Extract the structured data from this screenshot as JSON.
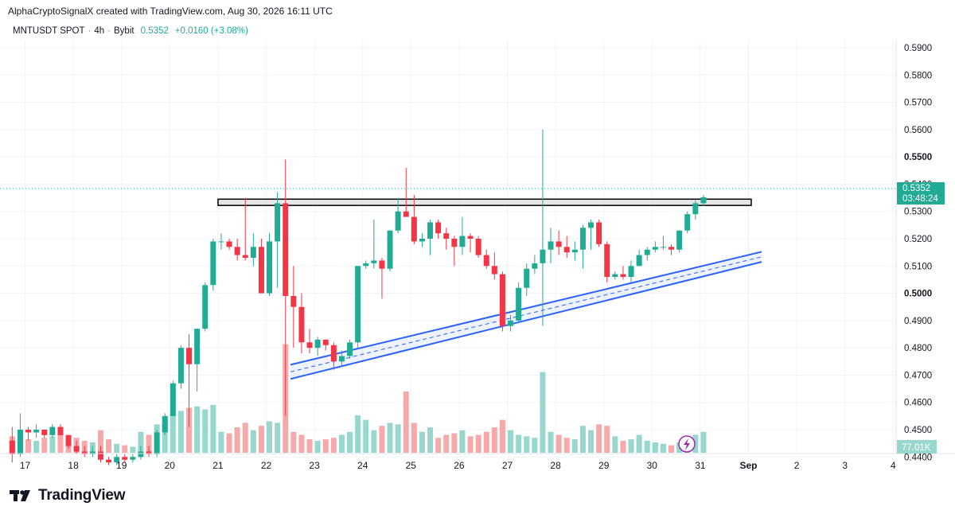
{
  "header": {
    "credit": "AlphaCryptoSignalX created with TradingView.com, Aug 30, 2026 16:11 UTC",
    "symbol": "MNTUSDT SPOT",
    "interval": "4h",
    "exchange": "Bybit",
    "last": "0.5352",
    "change": "+0.0160 (+3.08%)"
  },
  "price_label": {
    "value": "0.5352",
    "countdown": "03:48:24"
  },
  "volume_label": "77.01K",
  "brand": {
    "name": "TradingView"
  },
  "colors": {
    "up": "#22ab94",
    "down": "#f23645",
    "up_vol": "#98d7ce",
    "down_vol": "#f7a9a9",
    "channel": "#2962ff",
    "grid": "#f0f3fa"
  },
  "chart_data": {
    "type": "candlestick",
    "y_ticks": [
      "0.5900",
      "0.5800",
      "0.5700",
      "0.5600",
      "0.5500",
      "0.5400",
      "0.5300",
      "0.5200",
      "0.5100",
      "0.5000",
      "0.4900",
      "0.4800",
      "0.4700",
      "0.4600",
      "0.4500",
      "0.4400"
    ],
    "bold_ticks": [
      "0.5500",
      "0.5000"
    ],
    "x_ticks": [
      "17",
      "18",
      "19",
      "20",
      "21",
      "22",
      "23",
      "24",
      "25",
      "26",
      "27",
      "28",
      "29",
      "30",
      "31",
      "Sep",
      "2",
      "3",
      "4"
    ],
    "ylim": [
      0.4352,
      0.5985
    ],
    "last_price": 0.5352,
    "candles": [
      [
        0.446,
        0.451,
        0.438,
        0.441,
        22
      ],
      [
        0.441,
        0.456,
        0.44,
        0.45,
        28
      ],
      [
        0.45,
        0.451,
        0.446,
        0.449,
        18
      ],
      [
        0.449,
        0.452,
        0.447,
        0.45,
        16
      ],
      [
        0.45,
        0.45,
        0.447,
        0.448,
        20
      ],
      [
        0.448,
        0.452,
        0.447,
        0.451,
        22
      ],
      [
        0.451,
        0.452,
        0.448,
        0.448,
        30
      ],
      [
        0.448,
        0.448,
        0.443,
        0.444,
        24
      ],
      [
        0.444,
        0.446,
        0.441,
        0.442,
        20
      ],
      [
        0.442,
        0.444,
        0.44,
        0.441,
        16
      ],
      [
        0.441,
        0.444,
        0.44,
        0.442,
        14
      ],
      [
        0.442,
        0.444,
        0.438,
        0.439,
        30
      ],
      [
        0.439,
        0.44,
        0.437,
        0.438,
        18
      ],
      [
        0.438,
        0.441,
        0.437,
        0.44,
        12
      ],
      [
        0.44,
        0.441,
        0.438,
        0.439,
        10
      ],
      [
        0.439,
        0.441,
        0.438,
        0.44,
        8
      ],
      [
        0.44,
        0.444,
        0.439,
        0.442,
        28
      ],
      [
        0.442,
        0.444,
        0.44,
        0.441,
        24
      ],
      [
        0.441,
        0.45,
        0.44,
        0.449,
        38
      ],
      [
        0.449,
        0.456,
        0.448,
        0.455,
        40
      ],
      [
        0.455,
        0.468,
        0.455,
        0.467,
        50
      ],
      [
        0.467,
        0.481,
        0.465,
        0.48,
        56
      ],
      [
        0.48,
        0.485,
        0.451,
        0.474,
        60
      ],
      [
        0.474,
        0.487,
        0.464,
        0.487,
        62
      ],
      [
        0.487,
        0.504,
        0.486,
        0.503,
        58
      ],
      [
        0.503,
        0.52,
        0.501,
        0.519,
        64
      ],
      [
        0.519,
        0.522,
        0.516,
        0.519,
        28
      ],
      [
        0.519,
        0.52,
        0.516,
        0.517,
        26
      ],
      [
        0.517,
        0.52,
        0.512,
        0.514,
        34
      ],
      [
        0.514,
        0.535,
        0.512,
        0.513,
        40
      ],
      [
        0.513,
        0.522,
        0.51,
        0.517,
        30
      ],
      [
        0.517,
        0.52,
        0.5,
        0.5,
        36
      ],
      [
        0.5,
        0.522,
        0.499,
        0.519,
        42
      ],
      [
        0.519,
        0.537,
        0.502,
        0.533,
        40
      ],
      [
        0.533,
        0.549,
        0.455,
        0.499,
        145
      ],
      [
        0.499,
        0.51,
        0.48,
        0.495,
        28
      ],
      [
        0.495,
        0.5,
        0.478,
        0.482,
        24
      ],
      [
        0.482,
        0.487,
        0.478,
        0.48,
        18
      ],
      [
        0.48,
        0.484,
        0.477,
        0.483,
        16
      ],
      [
        0.483,
        0.483,
        0.479,
        0.481,
        18
      ],
      [
        0.481,
        0.482,
        0.472,
        0.475,
        20
      ],
      [
        0.475,
        0.479,
        0.473,
        0.477,
        24
      ],
      [
        0.477,
        0.483,
        0.476,
        0.482,
        28
      ],
      [
        0.482,
        0.51,
        0.48,
        0.51,
        50
      ],
      [
        0.51,
        0.512,
        0.509,
        0.511,
        44
      ],
      [
        0.511,
        0.527,
        0.509,
        0.512,
        30
      ],
      [
        0.512,
        0.513,
        0.498,
        0.509,
        36
      ],
      [
        0.509,
        0.523,
        0.508,
        0.523,
        40
      ],
      [
        0.523,
        0.535,
        0.522,
        0.53,
        38
      ],
      [
        0.53,
        0.546,
        0.529,
        0.528,
        82
      ],
      [
        0.528,
        0.536,
        0.518,
        0.519,
        40
      ],
      [
        0.519,
        0.522,
        0.517,
        0.52,
        28
      ],
      [
        0.52,
        0.527,
        0.514,
        0.526,
        34
      ],
      [
        0.526,
        0.527,
        0.52,
        0.522,
        20
      ],
      [
        0.522,
        0.524,
        0.516,
        0.52,
        24
      ],
      [
        0.52,
        0.521,
        0.51,
        0.517,
        26
      ],
      [
        0.517,
        0.528,
        0.514,
        0.521,
        30
      ],
      [
        0.521,
        0.522,
        0.515,
        0.52,
        22
      ],
      [
        0.52,
        0.521,
        0.513,
        0.514,
        24
      ],
      [
        0.514,
        0.516,
        0.509,
        0.51,
        28
      ],
      [
        0.51,
        0.515,
        0.505,
        0.507,
        34
      ],
      [
        0.507,
        0.508,
        0.486,
        0.488,
        44
      ],
      [
        0.488,
        0.492,
        0.486,
        0.49,
        30
      ],
      [
        0.49,
        0.504,
        0.489,
        0.502,
        24
      ],
      [
        0.502,
        0.511,
        0.499,
        0.509,
        22
      ],
      [
        0.509,
        0.514,
        0.507,
        0.511,
        20
      ],
      [
        0.511,
        0.56,
        0.488,
        0.516,
        108
      ],
      [
        0.516,
        0.524,
        0.511,
        0.519,
        28
      ],
      [
        0.519,
        0.523,
        0.514,
        0.517,
        24
      ],
      [
        0.517,
        0.521,
        0.513,
        0.515,
        20
      ],
      [
        0.515,
        0.519,
        0.512,
        0.516,
        18
      ],
      [
        0.516,
        0.525,
        0.509,
        0.524,
        36
      ],
      [
        0.524,
        0.527,
        0.516,
        0.526,
        30
      ],
      [
        0.526,
        0.527,
        0.517,
        0.518,
        38
      ],
      [
        0.518,
        0.519,
        0.504,
        0.506,
        36
      ],
      [
        0.506,
        0.508,
        0.505,
        0.507,
        22
      ],
      [
        0.507,
        0.51,
        0.505,
        0.506,
        16
      ],
      [
        0.506,
        0.512,
        0.504,
        0.51,
        18
      ],
      [
        0.51,
        0.516,
        0.51,
        0.514,
        24
      ],
      [
        0.514,
        0.517,
        0.512,
        0.516,
        16
      ],
      [
        0.516,
        0.519,
        0.515,
        0.517,
        14
      ],
      [
        0.517,
        0.521,
        0.516,
        0.517,
        12
      ],
      [
        0.517,
        0.518,
        0.514,
        0.516,
        10
      ],
      [
        0.516,
        0.523,
        0.515,
        0.523,
        14
      ],
      [
        0.523,
        0.53,
        0.522,
        0.529,
        18
      ],
      [
        0.529,
        0.534,
        0.527,
        0.533,
        24
      ],
      [
        0.533,
        0.536,
        0.532,
        0.5352,
        28
      ]
    ],
    "resistance_zone": [
      0.5322,
      0.5345
    ],
    "channel": {
      "upper_start": 0.4738,
      "upper_end": 0.5152,
      "lower_start": 0.4686,
      "lower_end": 0.5115
    }
  }
}
